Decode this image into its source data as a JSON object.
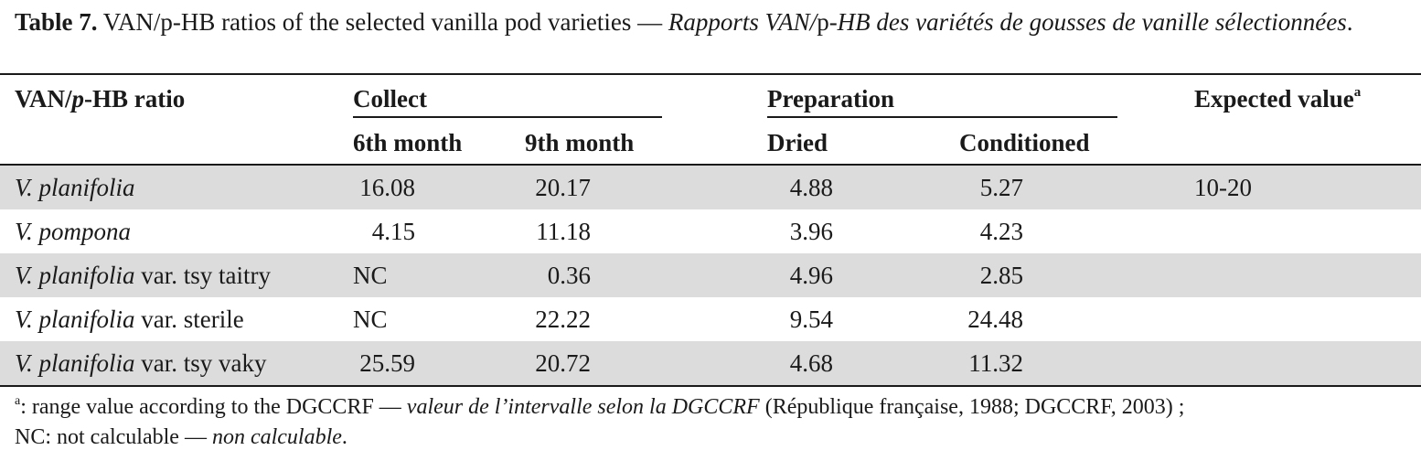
{
  "caption": {
    "label": "Table 7.",
    "text_en": " VAN/p-HB ratios of the selected vanilla pod varieties — ",
    "text_fr_1": "Rapports VAN/",
    "text_fr_p": "p",
    "text_fr_2": "-HB des variétés de gousses de vanille sélectionnées",
    "period": "."
  },
  "header": {
    "ratio_label": "VAN/p-HB ratio",
    "collect": "Collect",
    "preparation": "Preparation",
    "expected": "Expected value",
    "expected_sup": "a",
    "month6": "6th month",
    "month9": "9th month",
    "dried": "Dried",
    "conditioned": "Conditioned"
  },
  "rows": [
    {
      "name_italic": "V. planifolia",
      "name_rest": "",
      "m6": "16.08",
      "m9": "20.17",
      "dried": "4.88",
      "cond": "5.27",
      "expected": "10-20"
    },
    {
      "name_italic": "V. pompona",
      "name_rest": "",
      "m6": "4.15",
      "m9": "11.18",
      "dried": "3.96",
      "cond": "4.23",
      "expected": ""
    },
    {
      "name_italic": "V. planifolia",
      "name_rest": " var. tsy taitry",
      "m6": "NC",
      "m9": "0.36",
      "dried": "4.96",
      "cond": "2.85",
      "expected": ""
    },
    {
      "name_italic": "V. planifolia",
      "name_rest": " var. sterile",
      "m6": "NC",
      "m9": "22.22",
      "dried": "9.54",
      "cond": "24.48",
      "expected": ""
    },
    {
      "name_italic": "V. planifolia",
      "name_rest": " var. tsy vaky",
      "m6": "25.59",
      "m9": "20.72",
      "dried": "4.68",
      "cond": "11.32",
      "expected": ""
    }
  ],
  "footnotes": {
    "sup": "a",
    "line1_a": ": range value according to the DGCCRF — ",
    "line1_b": "valeur de l’intervalle selon la DGCCRF",
    "line1_c": " (République française, 1988; DGCCRF, 2003) ;",
    "line2_a": "NC: not calculable — ",
    "line2_b": "non calculable",
    "line2_c": "."
  }
}
